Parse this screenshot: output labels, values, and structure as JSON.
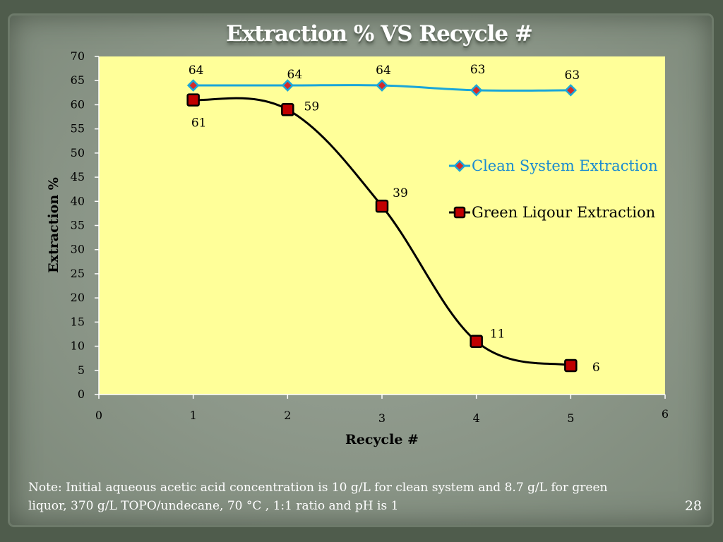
{
  "slide": {
    "title": "Extraction % VS Recycle #",
    "note_line1": "Note:  Initial aqueous acetic acid concentration is 10 g/L for clean system and 8.7 g/L for green",
    "note_line2": "liquor, 370 g/L  TOPO/undecane, 70 °C , 1:1 ratio and pH is 1",
    "page_number": "28"
  },
  "chart_data": {
    "type": "scatter",
    "title": "Extraction % VS Recycle #",
    "xlabel": "Recycle #",
    "ylabel": "Extraction %",
    "xlim": [
      0,
      6
    ],
    "ylim": [
      0,
      70
    ],
    "x_ticks": [
      0,
      1,
      2,
      3,
      4,
      5,
      6
    ],
    "y_ticks": [
      0,
      5,
      10,
      15,
      20,
      25,
      30,
      35,
      40,
      45,
      50,
      55,
      60,
      65,
      70
    ],
    "grid": false,
    "smooth_lines": true,
    "legend_position": "right",
    "plot_background": "#ffff99",
    "series": [
      {
        "name": "Clean System Extraction",
        "x": [
          1,
          2,
          3,
          4,
          5
        ],
        "y": [
          64,
          64,
          64,
          63,
          63
        ],
        "data_labels": [
          "64",
          "64",
          "64",
          "63",
          "63"
        ],
        "line_color": "#1aa6d9",
        "marker": "diamond",
        "marker_color": "#d42a2a"
      },
      {
        "name": "Green Liqour Extraction",
        "x": [
          1,
          2,
          3,
          4,
          5
        ],
        "y": [
          61,
          59,
          39,
          11,
          6
        ],
        "data_labels": [
          "61",
          "59",
          "39",
          "11",
          "6"
        ],
        "line_color": "#000000",
        "marker": "square",
        "marker_color": "#c00000"
      }
    ]
  }
}
